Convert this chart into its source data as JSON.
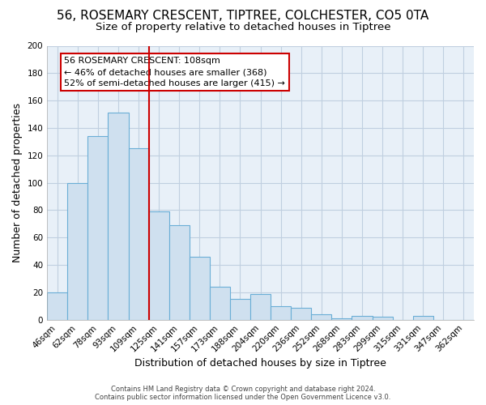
{
  "title": "56, ROSEMARY CRESCENT, TIPTREE, COLCHESTER, CO5 0TA",
  "subtitle": "Size of property relative to detached houses in Tiptree",
  "xlabel": "Distribution of detached houses by size in Tiptree",
  "ylabel": "Number of detached properties",
  "footer_line1": "Contains HM Land Registry data © Crown copyright and database right 2024.",
  "footer_line2": "Contains public sector information licensed under the Open Government Licence v3.0.",
  "categories": [
    "46sqm",
    "62sqm",
    "78sqm",
    "93sqm",
    "109sqm",
    "125sqm",
    "141sqm",
    "157sqm",
    "173sqm",
    "188sqm",
    "204sqm",
    "220sqm",
    "236sqm",
    "252sqm",
    "268sqm",
    "283sqm",
    "299sqm",
    "315sqm",
    "331sqm",
    "347sqm",
    "362sqm"
  ],
  "values": [
    20,
    100,
    134,
    151,
    125,
    79,
    69,
    46,
    24,
    15,
    19,
    10,
    9,
    4,
    1,
    3,
    2,
    0,
    3,
    0,
    0
  ],
  "bar_color": "#cfe0ef",
  "bar_edge_color": "#6aaed6",
  "highlight_bar_index": 4,
  "red_line_bar_index": 4,
  "annotation_box_text_line1": "56 ROSEMARY CRESCENT: 108sqm",
  "annotation_box_text_line2": "← 46% of detached houses are smaller (368)",
  "annotation_box_text_line3": "52% of semi-detached houses are larger (415) →",
  "annotation_box_color": "white",
  "annotation_box_edge_color": "#cc0000",
  "ylim": [
    0,
    200
  ],
  "yticks": [
    0,
    20,
    40,
    60,
    80,
    100,
    120,
    140,
    160,
    180,
    200
  ],
  "background_color": "#ffffff",
  "plot_bg_color": "#e8f0f8",
  "grid_color": "#c0cfe0",
  "title_fontsize": 11,
  "subtitle_fontsize": 9.5,
  "axis_label_fontsize": 9,
  "tick_fontsize": 7.5
}
